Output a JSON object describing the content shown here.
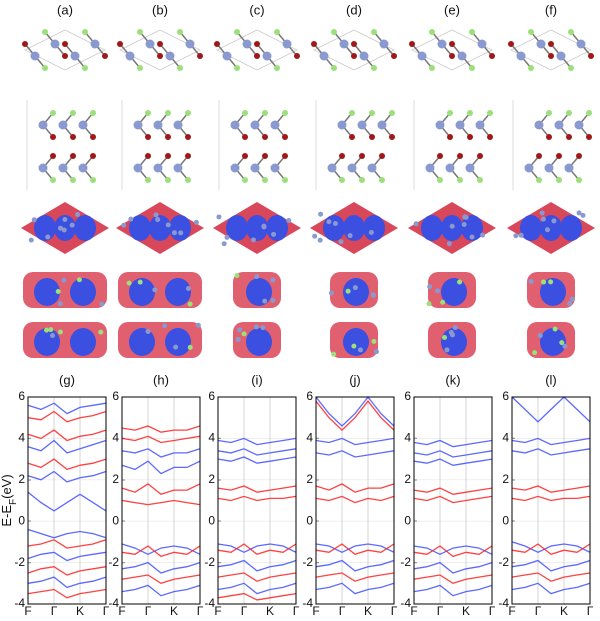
{
  "structure_labels": [
    "(a)",
    "(b)",
    "(c)",
    "(d)",
    "(e)",
    "(f)"
  ],
  "chart_data": [
    {
      "type": "line",
      "title": "(g)",
      "y_label": "E-E",
      "y_label_subscript": "F",
      "y_label_unit": "(eV)",
      "categories": [
        "F",
        null,
        "Γ",
        null,
        "K",
        null,
        "Γ"
      ],
      "ylim": [
        -4,
        6
      ],
      "yticks": [
        -4,
        -2,
        0,
        2,
        4,
        6
      ],
      "series": [
        {
          "color": "#3f4fff",
          "values": [
            5.6,
            5.4,
            5.7,
            5.2,
            5.5,
            5.6,
            5.7
          ]
        },
        {
          "color": "#ff2020",
          "values": [
            5.0,
            4.9,
            5.3,
            4.8,
            5.0,
            5.1,
            5.3
          ]
        },
        {
          "color": "#ff2020",
          "values": [
            4.2,
            4.0,
            4.4,
            3.9,
            4.1,
            4.2,
            4.4
          ]
        },
        {
          "color": "#3f4fff",
          "values": [
            3.6,
            3.4,
            3.9,
            3.3,
            3.5,
            3.7,
            3.9
          ]
        },
        {
          "color": "#ff2020",
          "values": [
            2.8,
            2.6,
            3.0,
            2.5,
            2.7,
            2.8,
            3.0
          ]
        },
        {
          "color": "#3f4fff",
          "values": [
            2.2,
            2.0,
            2.4,
            1.9,
            2.1,
            2.2,
            2.4
          ]
        },
        {
          "color": "#3f4fff",
          "values": [
            1.4,
            0.9,
            0.5,
            0.9,
            1.3,
            0.9,
            0.5
          ]
        },
        {
          "color": "#3f4fff",
          "values": [
            -0.4,
            -0.6,
            -0.8,
            -0.6,
            -0.5,
            -0.6,
            -0.8
          ]
        },
        {
          "color": "#ff2020",
          "values": [
            -1.2,
            -1.1,
            -0.9,
            -1.3,
            -1.2,
            -1.1,
            -0.9
          ]
        },
        {
          "color": "#3f4fff",
          "values": [
            -1.8,
            -1.6,
            -1.5,
            -1.9,
            -1.7,
            -1.6,
            -1.5
          ]
        },
        {
          "color": "#ff2020",
          "values": [
            -2.5,
            -2.3,
            -2.2,
            -2.6,
            -2.4,
            -2.3,
            -2.2
          ]
        },
        {
          "color": "#3f4fff",
          "values": [
            -3.0,
            -2.9,
            -2.7,
            -3.2,
            -3.0,
            -2.9,
            -2.7
          ]
        },
        {
          "color": "#ff2020",
          "values": [
            -3.5,
            -3.4,
            -3.3,
            -3.7,
            -3.5,
            -3.4,
            -3.3
          ]
        }
      ]
    },
    {
      "type": "line",
      "title": "(h)",
      "categories": [
        "F",
        null,
        "Γ",
        null,
        "K",
        null,
        "Γ"
      ],
      "ylim": [
        -4,
        6
      ],
      "yticks": [
        -4,
        -2,
        0,
        2,
        4,
        6
      ],
      "series": [
        {
          "color": "#ff2020",
          "values": [
            4.5,
            4.4,
            4.6,
            4.3,
            4.4,
            4.4,
            4.6
          ]
        },
        {
          "color": "#ff2020",
          "values": [
            4.0,
            3.9,
            4.1,
            3.8,
            3.9,
            4.0,
            4.1
          ]
        },
        {
          "color": "#3f4fff",
          "values": [
            3.4,
            3.3,
            3.5,
            3.1,
            3.3,
            3.3,
            3.5
          ]
        },
        {
          "color": "#3f4fff",
          "values": [
            2.7,
            2.5,
            2.9,
            2.3,
            2.6,
            2.6,
            2.9
          ]
        },
        {
          "color": "#ff2020",
          "values": [
            1.6,
            1.4,
            1.8,
            1.3,
            1.5,
            1.5,
            1.8
          ]
        },
        {
          "color": "#ff2020",
          "values": [
            1.0,
            0.9,
            0.8,
            0.9,
            1.0,
            0.9,
            0.8
          ]
        },
        {
          "color": "#3f4fff",
          "values": [
            -1.1,
            -1.3,
            -1.6,
            -1.3,
            -1.2,
            -1.3,
            -1.6
          ]
        },
        {
          "color": "#ff2020",
          "values": [
            -1.5,
            -1.6,
            -1.2,
            -1.7,
            -1.5,
            -1.6,
            -1.2
          ]
        },
        {
          "color": "#3f4fff",
          "values": [
            -2.3,
            -2.2,
            -2.0,
            -2.5,
            -2.3,
            -2.2,
            -2.0
          ]
        },
        {
          "color": "#ff2020",
          "values": [
            -2.8,
            -2.7,
            -2.6,
            -3.0,
            -2.8,
            -2.7,
            -2.6
          ]
        },
        {
          "color": "#3f4fff",
          "values": [
            -3.4,
            -3.3,
            -3.1,
            -3.6,
            -3.4,
            -3.3,
            -3.1
          ]
        }
      ]
    },
    {
      "type": "line",
      "title": "(i)",
      "categories": [
        "F",
        null,
        "Γ",
        null,
        "K",
        null,
        "Γ"
      ],
      "ylim": [
        -4,
        6
      ],
      "yticks": [
        -4,
        -2,
        0,
        2,
        4,
        6
      ],
      "series": [
        {
          "color": "#3f4fff",
          "values": [
            3.9,
            3.8,
            4.0,
            3.7,
            3.8,
            3.9,
            4.0
          ]
        },
        {
          "color": "#3f4fff",
          "values": [
            3.4,
            3.3,
            3.5,
            3.2,
            3.3,
            3.4,
            3.5
          ]
        },
        {
          "color": "#3f4fff",
          "values": [
            3.0,
            2.9,
            3.1,
            2.8,
            2.9,
            3.0,
            3.1
          ]
        },
        {
          "color": "#ff2020",
          "values": [
            1.6,
            1.5,
            1.7,
            1.4,
            1.5,
            1.6,
            1.7
          ]
        },
        {
          "color": "#ff2020",
          "values": [
            1.1,
            1.0,
            1.2,
            1.0,
            1.1,
            1.1,
            1.2
          ]
        },
        {
          "color": "#3f4fff",
          "values": [
            -1.1,
            -1.2,
            -1.5,
            -1.2,
            -1.1,
            -1.2,
            -1.5
          ]
        },
        {
          "color": "#ff2020",
          "values": [
            -1.4,
            -1.5,
            -1.1,
            -1.6,
            -1.4,
            -1.5,
            -1.1
          ]
        },
        {
          "color": "#3f4fff",
          "values": [
            -2.2,
            -2.1,
            -1.9,
            -2.4,
            -2.2,
            -2.1,
            -1.9
          ]
        },
        {
          "color": "#ff2020",
          "values": [
            -2.7,
            -2.6,
            -2.5,
            -2.9,
            -2.7,
            -2.6,
            -2.5
          ]
        },
        {
          "color": "#3f4fff",
          "values": [
            -3.3,
            -3.2,
            -3.0,
            -3.5,
            -3.3,
            -3.2,
            -3.0
          ]
        },
        {
          "color": "#ff2020",
          "values": [
            -3.7,
            -3.6,
            -3.5,
            -3.8,
            -3.7,
            -3.6,
            -3.5
          ]
        }
      ]
    },
    {
      "type": "line",
      "title": "(j)",
      "categories": [
        "F",
        null,
        "Γ",
        null,
        "K",
        null,
        "Γ"
      ],
      "ylim": [
        -4,
        6
      ],
      "yticks": [
        -4,
        -2,
        0,
        2,
        4,
        6
      ],
      "series": [
        {
          "color": "#3f4fff",
          "values": [
            6.0,
            5.2,
            4.6,
            5.2,
            6.0,
            5.2,
            4.6
          ]
        },
        {
          "color": "#ff2020",
          "values": [
            5.8,
            5.0,
            4.4,
            5.0,
            5.8,
            5.0,
            4.4
          ]
        },
        {
          "color": "#3f4fff",
          "values": [
            3.9,
            3.8,
            4.0,
            3.7,
            3.8,
            3.9,
            4.0
          ]
        },
        {
          "color": "#3f4fff",
          "values": [
            3.3,
            3.2,
            3.4,
            3.1,
            3.2,
            3.3,
            3.4
          ]
        },
        {
          "color": "#ff2020",
          "values": [
            1.7,
            1.5,
            1.8,
            1.4,
            1.6,
            1.6,
            1.8
          ]
        },
        {
          "color": "#ff2020",
          "values": [
            1.1,
            1.0,
            1.2,
            0.9,
            1.1,
            1.0,
            1.2
          ]
        },
        {
          "color": "#3f4fff",
          "values": [
            -1.1,
            -1.2,
            -1.5,
            -1.2,
            -1.1,
            -1.2,
            -1.5
          ]
        },
        {
          "color": "#ff2020",
          "values": [
            -1.4,
            -1.5,
            -1.1,
            -1.6,
            -1.4,
            -1.5,
            -1.1
          ]
        },
        {
          "color": "#3f4fff",
          "values": [
            -2.2,
            -2.1,
            -1.9,
            -2.4,
            -2.2,
            -2.1,
            -1.9
          ]
        },
        {
          "color": "#ff2020",
          "values": [
            -2.7,
            -2.6,
            -2.5,
            -2.9,
            -2.7,
            -2.6,
            -2.5
          ]
        },
        {
          "color": "#3f4fff",
          "values": [
            -3.3,
            -3.2,
            -3.0,
            -3.5,
            -3.3,
            -3.2,
            -3.0
          ]
        }
      ]
    },
    {
      "type": "line",
      "title": "(k)",
      "categories": [
        "F",
        null,
        "Γ",
        null,
        "K",
        null,
        "Γ"
      ],
      "ylim": [
        -4,
        6
      ],
      "yticks": [
        -4,
        -2,
        0,
        2,
        4,
        6
      ],
      "series": [
        {
          "color": "#3f4fff",
          "values": [
            3.8,
            3.7,
            3.9,
            3.6,
            3.7,
            3.8,
            3.9
          ]
        },
        {
          "color": "#3f4fff",
          "values": [
            3.3,
            3.2,
            3.4,
            3.1,
            3.2,
            3.3,
            3.4
          ]
        },
        {
          "color": "#3f4fff",
          "values": [
            2.9,
            2.8,
            3.0,
            2.7,
            2.8,
            2.9,
            3.0
          ]
        },
        {
          "color": "#ff2020",
          "values": [
            1.5,
            1.4,
            1.6,
            1.3,
            1.4,
            1.5,
            1.6
          ]
        },
        {
          "color": "#ff2020",
          "values": [
            1.1,
            1.0,
            1.2,
            0.9,
            1.0,
            1.1,
            1.2
          ]
        },
        {
          "color": "#3f4fff",
          "values": [
            -1.2,
            -1.3,
            -1.6,
            -1.3,
            -1.2,
            -1.3,
            -1.6
          ]
        },
        {
          "color": "#ff2020",
          "values": [
            -1.5,
            -1.6,
            -1.2,
            -1.7,
            -1.5,
            -1.6,
            -1.2
          ]
        },
        {
          "color": "#3f4fff",
          "values": [
            -2.3,
            -2.2,
            -2.0,
            -2.5,
            -2.3,
            -2.2,
            -2.0
          ]
        },
        {
          "color": "#ff2020",
          "values": [
            -2.8,
            -2.7,
            -2.6,
            -3.0,
            -2.8,
            -2.7,
            -2.6
          ]
        },
        {
          "color": "#3f4fff",
          "values": [
            -3.4,
            -3.3,
            -3.1,
            -3.6,
            -3.4,
            -3.3,
            -3.1
          ]
        }
      ]
    },
    {
      "type": "line",
      "title": "(l)",
      "categories": [
        "F",
        null,
        "Γ",
        null,
        "K",
        null,
        "Γ"
      ],
      "ylim": [
        -4,
        6
      ],
      "yticks": [
        -4,
        -2,
        0,
        2,
        4,
        6
      ],
      "series": [
        {
          "color": "#3f4fff",
          "values": [
            6.0,
            5.4,
            4.8,
            5.4,
            6.0,
            5.4,
            4.8
          ]
        },
        {
          "color": "#3f4fff",
          "values": [
            3.9,
            3.8,
            4.0,
            3.7,
            3.8,
            3.9,
            4.0
          ]
        },
        {
          "color": "#3f4fff",
          "values": [
            3.4,
            3.3,
            3.5,
            3.2,
            3.3,
            3.4,
            3.5
          ]
        },
        {
          "color": "#ff2020",
          "values": [
            1.6,
            1.5,
            1.7,
            1.4,
            1.5,
            1.6,
            1.7
          ]
        },
        {
          "color": "#ff2020",
          "values": [
            1.1,
            1.0,
            1.2,
            1.0,
            1.1,
            1.1,
            1.2
          ]
        },
        {
          "color": "#3f4fff",
          "values": [
            -1.0,
            -1.2,
            -1.5,
            -1.2,
            -1.1,
            -1.2,
            -1.5
          ]
        },
        {
          "color": "#ff2020",
          "values": [
            -1.4,
            -1.5,
            -1.1,
            -1.6,
            -1.4,
            -1.5,
            -1.1
          ]
        },
        {
          "color": "#3f4fff",
          "values": [
            -2.2,
            -2.1,
            -1.9,
            -2.4,
            -2.2,
            -2.1,
            -1.9
          ]
        },
        {
          "color": "#ff2020",
          "values": [
            -2.7,
            -2.6,
            -2.5,
            -2.9,
            -2.7,
            -2.6,
            -2.5
          ]
        },
        {
          "color": "#3f4fff",
          "values": [
            -3.3,
            -3.2,
            -3.0,
            -3.5,
            -3.3,
            -3.2,
            -3.0
          ]
        }
      ]
    }
  ]
}
